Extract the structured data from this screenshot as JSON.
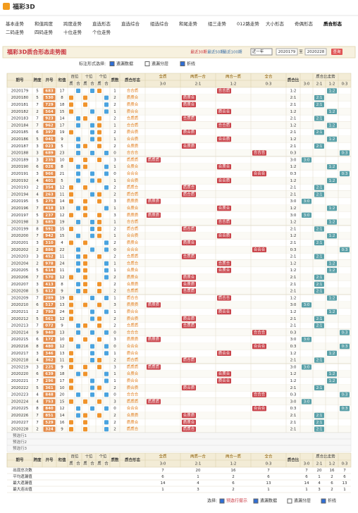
{
  "header": {
    "logo": "福彩3D",
    "nav": [
      "基本走势",
      "和值跨度",
      "跨度走势",
      "直选形态",
      "直选综合",
      "组选综合",
      "和尾走势",
      "组三走势",
      "012路走势",
      "大小形态",
      "奇偶形态",
      "质合形态",
      "二码走势",
      "四码走势",
      "十位走势",
      "个位走势"
    ]
  },
  "title_bar": {
    "title": "福彩3D质合形态走势图",
    "quick": [
      "最近30期",
      "最近50期",
      "最近100期"
    ],
    "range": "近一年",
    "from": "2020179",
    "to_label": "至",
    "to": "2020228",
    "submit": "查询"
  },
  "options": {
    "label": "标注形式选择:",
    "items": [
      "遗漏数据",
      "遗漏分层",
      "折线"
    ]
  },
  "table": {
    "headers": {
      "period": "期号",
      "span": "跨度",
      "number": "开号",
      "sum": "和值",
      "positions": [
        "百位",
        "十位",
        "个位"
      ],
      "kinds": [
        "质",
        "合"
      ],
      "primes": "质数",
      "shape": "质合形态",
      "groups": [
        "全质",
        "两质一合",
        "两合一质",
        "全合"
      ],
      "ratio": "质合比",
      "trend": "质合比走势",
      "ratios": [
        "3:0",
        "2:1",
        "1:2",
        "0:3"
      ]
    },
    "rows": [
      [
        "2020179",
        5,
        "683",
        17,
        1,
        "合合质",
        "1:2"
      ],
      [
        "2020180",
        5,
        "530",
        8,
        2,
        "质质合",
        "2:1"
      ],
      [
        "2020181",
        7,
        "729",
        18,
        2,
        "质质合",
        "2:1"
      ],
      [
        "2020182",
        2,
        "564",
        15,
        1,
        "质合合",
        "1:2"
      ],
      [
        "2020183",
        7,
        "923",
        14,
        2,
        "合质质",
        "2:1"
      ],
      [
        "2020184",
        7,
        "962",
        17,
        1,
        "合合质",
        "1:2"
      ],
      [
        "2020185",
        6,
        "397",
        19,
        2,
        "质合质",
        "2:1"
      ],
      [
        "2020186",
        5,
        "045",
        9,
        1,
        "合合质",
        "1:2"
      ],
      [
        "2020187",
        3,
        "023",
        5,
        2,
        "合质质",
        "2:1"
      ],
      [
        "2020188",
        3,
        "689",
        23,
        0,
        "合合合",
        "0:3"
      ],
      [
        "2020189",
        3,
        "235",
        10,
        3,
        "质质质",
        "3:0"
      ],
      [
        "2020190",
        6,
        "026",
        8,
        1,
        "合质合",
        "1:2"
      ],
      [
        "2020191",
        3,
        "966",
        21,
        0,
        "合合合",
        "0:3"
      ],
      [
        "2020192",
        4,
        "401",
        5,
        1,
        "合合质",
        "1:2"
      ],
      [
        "2020193",
        2,
        "354",
        12,
        2,
        "质质合",
        "2:1"
      ],
      [
        "2020194",
        4,
        "263",
        11,
        2,
        "质合质",
        "2:1"
      ],
      [
        "2020195",
        5,
        "275",
        14,
        3,
        "质质质",
        "3:0"
      ],
      [
        "2020196",
        7,
        "418",
        13,
        1,
        "合质合",
        "1:2"
      ],
      [
        "2020197",
        5,
        "237",
        12,
        3,
        "质质质",
        "3:0"
      ],
      [
        "2020198",
        3,
        "685",
        19,
        1,
        "合合质",
        "1:2"
      ],
      [
        "2020199",
        8,
        "591",
        15,
        2,
        "质合质",
        "2:1"
      ],
      [
        "2020200",
        7,
        "942",
        15,
        1,
        "合合质",
        "1:2"
      ],
      [
        "2020201",
        3,
        "310",
        4,
        2,
        "质质合",
        "2:1"
      ],
      [
        "2020202",
        2,
        "886",
        22,
        0,
        "合合合",
        "0:3"
      ],
      [
        "2020203",
        3,
        "452",
        11,
        2,
        "合质质",
        "2:1"
      ],
      [
        "2020204",
        2,
        "978",
        24,
        1,
        "合质合",
        "1:2"
      ],
      [
        "2020205",
        5,
        "614",
        11,
        1,
        "合质合",
        "1:2"
      ],
      [
        "2020206",
        7,
        "570",
        12,
        2,
        "质质合",
        "2:1"
      ],
      [
        "2020207",
        3,
        "413",
        8,
        2,
        "合质质",
        "2:1"
      ],
      [
        "2020208",
        5,
        "612",
        9,
        2,
        "合质质",
        "2:1"
      ],
      [
        "2020209",
        7,
        "289",
        19,
        1,
        "质合合",
        "1:2"
      ],
      [
        "2020210",
        6,
        "517",
        13,
        3,
        "质质质",
        "3:0"
      ],
      [
        "2020211",
        2,
        "798",
        24,
        1,
        "质合合",
        "1:2"
      ],
      [
        "2020212",
        5,
        "561",
        12,
        2,
        "质合质",
        "2:1"
      ],
      [
        "2020213",
        7,
        "072",
        9,
        2,
        "合质质",
        "2:1"
      ],
      [
        "2020214",
        9,
        "940",
        13,
        0,
        "合合合",
        "0:3"
      ],
      [
        "2020215",
        6,
        "172",
        10,
        3,
        "质质质",
        "3:0"
      ],
      [
        "2020216",
        8,
        "480",
        12,
        0,
        "合合合",
        "0:3"
      ],
      [
        "2020217",
        3,
        "346",
        13,
        1,
        "质合合",
        "1:2"
      ],
      [
        "2020218",
        4,
        "362",
        11,
        2,
        "质合质",
        "2:1"
      ],
      [
        "2020219",
        3,
        "225",
        9,
        3,
        "质质质",
        "3:0"
      ],
      [
        "2020220",
        6,
        "639",
        18,
        1,
        "合质合",
        "1:2"
      ],
      [
        "2020221",
        7,
        "296",
        17,
        1,
        "质合合",
        "1:2"
      ],
      [
        "2020222",
        5,
        "361",
        10,
        2,
        "质合质",
        "2:1"
      ],
      [
        "2020223",
        4,
        "848",
        20,
        0,
        "合合合",
        "0:3"
      ],
      [
        "2020224",
        4,
        "753",
        15,
        3,
        "质质质",
        "3:0"
      ],
      [
        "2020225",
        8,
        "840",
        12,
        0,
        "合合合",
        "0:3"
      ],
      [
        "2020226",
        7,
        "851",
        14,
        2,
        "合质质",
        "2:1"
      ],
      [
        "2020227",
        7,
        "529",
        16,
        2,
        "质质合",
        "2:1"
      ],
      [
        "2020228",
        2,
        "324",
        9,
        2,
        "质质合",
        "2:1"
      ]
    ],
    "preselect": [
      "预选行1",
      "预选行2",
      "预选行3"
    ],
    "stats": [
      {
        "label": "出现总次数",
        "values": [
          7,
          20,
          16,
          7
        ]
      },
      {
        "label": "平均遗漏值",
        "values": [
          6,
          1,
          2,
          6
        ]
      },
      {
        "label": "最大遗漏值",
        "values": [
          14,
          4,
          6,
          13
        ]
      },
      {
        "label": "最大连出值",
        "values": [
          1,
          3,
          2,
          1
        ]
      }
    ]
  },
  "footer": {
    "label": "选择:",
    "items": [
      "预选行提示",
      "遗漏数据",
      "遗漏分层",
      "折线"
    ]
  }
}
